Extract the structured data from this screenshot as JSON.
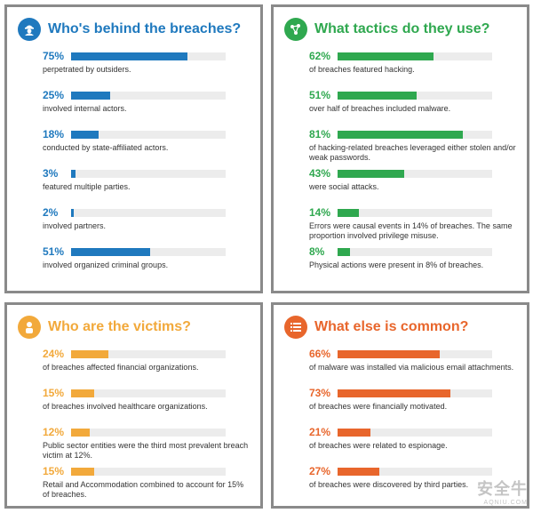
{
  "panels": [
    {
      "title": "Who's behind the breaches?",
      "color": "#1f79be",
      "icon": "person-icon",
      "items": [
        {
          "pct": "75%",
          "value": 75,
          "desc": "perpetrated by outsiders."
        },
        {
          "pct": "25%",
          "value": 25,
          "desc": "involved internal actors."
        },
        {
          "pct": "18%",
          "value": 18,
          "desc": "conducted by state-affiliated actors."
        },
        {
          "pct": "3%",
          "value": 3,
          "desc": "featured multiple parties."
        },
        {
          "pct": "2%",
          "value": 2,
          "desc": "involved partners."
        },
        {
          "pct": "51%",
          "value": 51,
          "desc": "involved organized criminal groups."
        }
      ]
    },
    {
      "title": "What tactics do they use?",
      "color": "#2fa84f",
      "icon": "network-icon",
      "items": [
        {
          "pct": "62%",
          "value": 62,
          "desc": "of breaches featured hacking."
        },
        {
          "pct": "51%",
          "value": 51,
          "desc": "over half of breaches included malware."
        },
        {
          "pct": "81%",
          "value": 81,
          "desc": "of hacking-related breaches leveraged either stolen and/or weak passwords."
        },
        {
          "pct": "43%",
          "value": 43,
          "desc": "were social attacks."
        },
        {
          "pct": "14%",
          "value": 14,
          "desc": "Errors were causal events in 14% of breaches. The same proportion involved privilege misuse."
        },
        {
          "pct": "8%",
          "value": 8,
          "desc": "Physical actions were present in 8% of breaches."
        }
      ]
    },
    {
      "title": "Who are the victims?",
      "color": "#f2a93b",
      "icon": "victim-icon",
      "items": [
        {
          "pct": "24%",
          "value": 24,
          "desc": "of breaches affected financial organizations."
        },
        {
          "pct": "15%",
          "value": 15,
          "desc": "of breaches involved healthcare organizations."
        },
        {
          "pct": "12%",
          "value": 12,
          "desc": "Public sector entities were the third most prevalent breach victim at 12%."
        },
        {
          "pct": "15%",
          "value": 15,
          "desc": "Retail and Accommodation combined to account for 15% of breaches."
        }
      ]
    },
    {
      "title": "What else is common?",
      "color": "#e8662c",
      "icon": "list-icon",
      "items": [
        {
          "pct": "66%",
          "value": 66,
          "desc": "of malware was installed via malicious email attachments."
        },
        {
          "pct": "73%",
          "value": 73,
          "desc": "of breaches were financially motivated."
        },
        {
          "pct": "21%",
          "value": 21,
          "desc": "of breaches were related to espionage."
        },
        {
          "pct": "27%",
          "value": 27,
          "desc": "of breaches were discovered by third parties."
        }
      ]
    }
  ],
  "chart_data": [
    {
      "type": "bar",
      "title": "Who's behind the breaches?",
      "values": [
        75,
        25,
        18,
        3,
        2,
        51
      ],
      "categories": [
        "perpetrated by outsiders.",
        "involved internal actors.",
        "conducted by state-affiliated actors.",
        "featured multiple parties.",
        "involved partners.",
        "involved organized criminal groups."
      ],
      "ylim": [
        0,
        100
      ]
    },
    {
      "type": "bar",
      "title": "What tactics do they use?",
      "values": [
        62,
        51,
        81,
        43,
        14,
        8
      ],
      "categories": [
        "of breaches featured hacking.",
        "over half of breaches included malware.",
        "of hacking-related breaches leveraged either stolen and/or weak passwords.",
        "were social attacks.",
        "Errors were causal events in 14% of breaches. The same proportion involved privilege misuse.",
        "Physical actions were present in 8% of breaches."
      ],
      "ylim": [
        0,
        100
      ]
    },
    {
      "type": "bar",
      "title": "Who are the victims?",
      "values": [
        24,
        15,
        12,
        15
      ],
      "categories": [
        "of breaches affected financial organizations.",
        "of breaches involved healthcare organizations.",
        "Public sector entities were the third most prevalent breach victim at 12%.",
        "Retail and Accommodation combined to account for 15% of breaches."
      ],
      "ylim": [
        0,
        100
      ]
    },
    {
      "type": "bar",
      "title": "What else is common?",
      "values": [
        66,
        73,
        21,
        27
      ],
      "categories": [
        "of malware was installed via malicious email attachments.",
        "of breaches were financially motivated.",
        "of breaches were related to espionage.",
        "of breaches were discovered by third parties."
      ],
      "ylim": [
        0,
        100
      ]
    }
  ],
  "watermark": {
    "main": "安全牛",
    "sub": "AQNIU.COM"
  }
}
